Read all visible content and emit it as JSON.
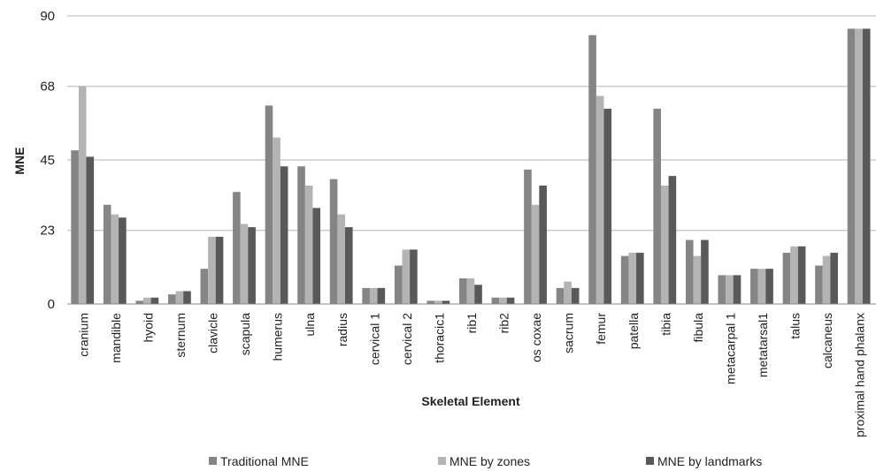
{
  "chart_data": {
    "type": "bar",
    "title": "",
    "xlabel": "Skeletal Element",
    "ylabel": "MNE",
    "ylim": [
      0,
      90
    ],
    "yticks": [
      "0",
      "23",
      "45",
      "68",
      "90"
    ],
    "grid": true,
    "legend_position": "bottom",
    "categories": [
      "cranium",
      "mandible",
      "hyoid",
      "sternum",
      "clavicle",
      "scapula",
      "humerus",
      "ulna",
      "radius",
      "cervical 1",
      "cervical 2",
      "thoracic1",
      "rib1",
      "rib2",
      "os coxae",
      "sacrum",
      "femur",
      "patella",
      "tibia",
      "fibula",
      "metacarpal 1",
      "metatarsal1",
      "talus",
      "calcaneus",
      "proximal hand phalanx"
    ],
    "series": [
      {
        "name": "Traditional MNE",
        "color": "#858585",
        "values": [
          48,
          31,
          1,
          3,
          11,
          35,
          62,
          43,
          39,
          5,
          12,
          1,
          8,
          2,
          42,
          5,
          84,
          15,
          61,
          20,
          9,
          11,
          16,
          12,
          86
        ]
      },
      {
        "name": "MNE by zones",
        "color": "#b4b4b4",
        "values": [
          68,
          28,
          2,
          4,
          21,
          25,
          52,
          37,
          28,
          5,
          17,
          1,
          8,
          2,
          31,
          7,
          65,
          16,
          37,
          15,
          9,
          11,
          18,
          15,
          86
        ]
      },
      {
        "name": "MNE by landmarks",
        "color": "#595959",
        "values": [
          46,
          27,
          2,
          4,
          21,
          24,
          43,
          30,
          24,
          5,
          17,
          1,
          6,
          2,
          37,
          5,
          61,
          16,
          40,
          20,
          9,
          11,
          18,
          16,
          86
        ]
      }
    ]
  }
}
